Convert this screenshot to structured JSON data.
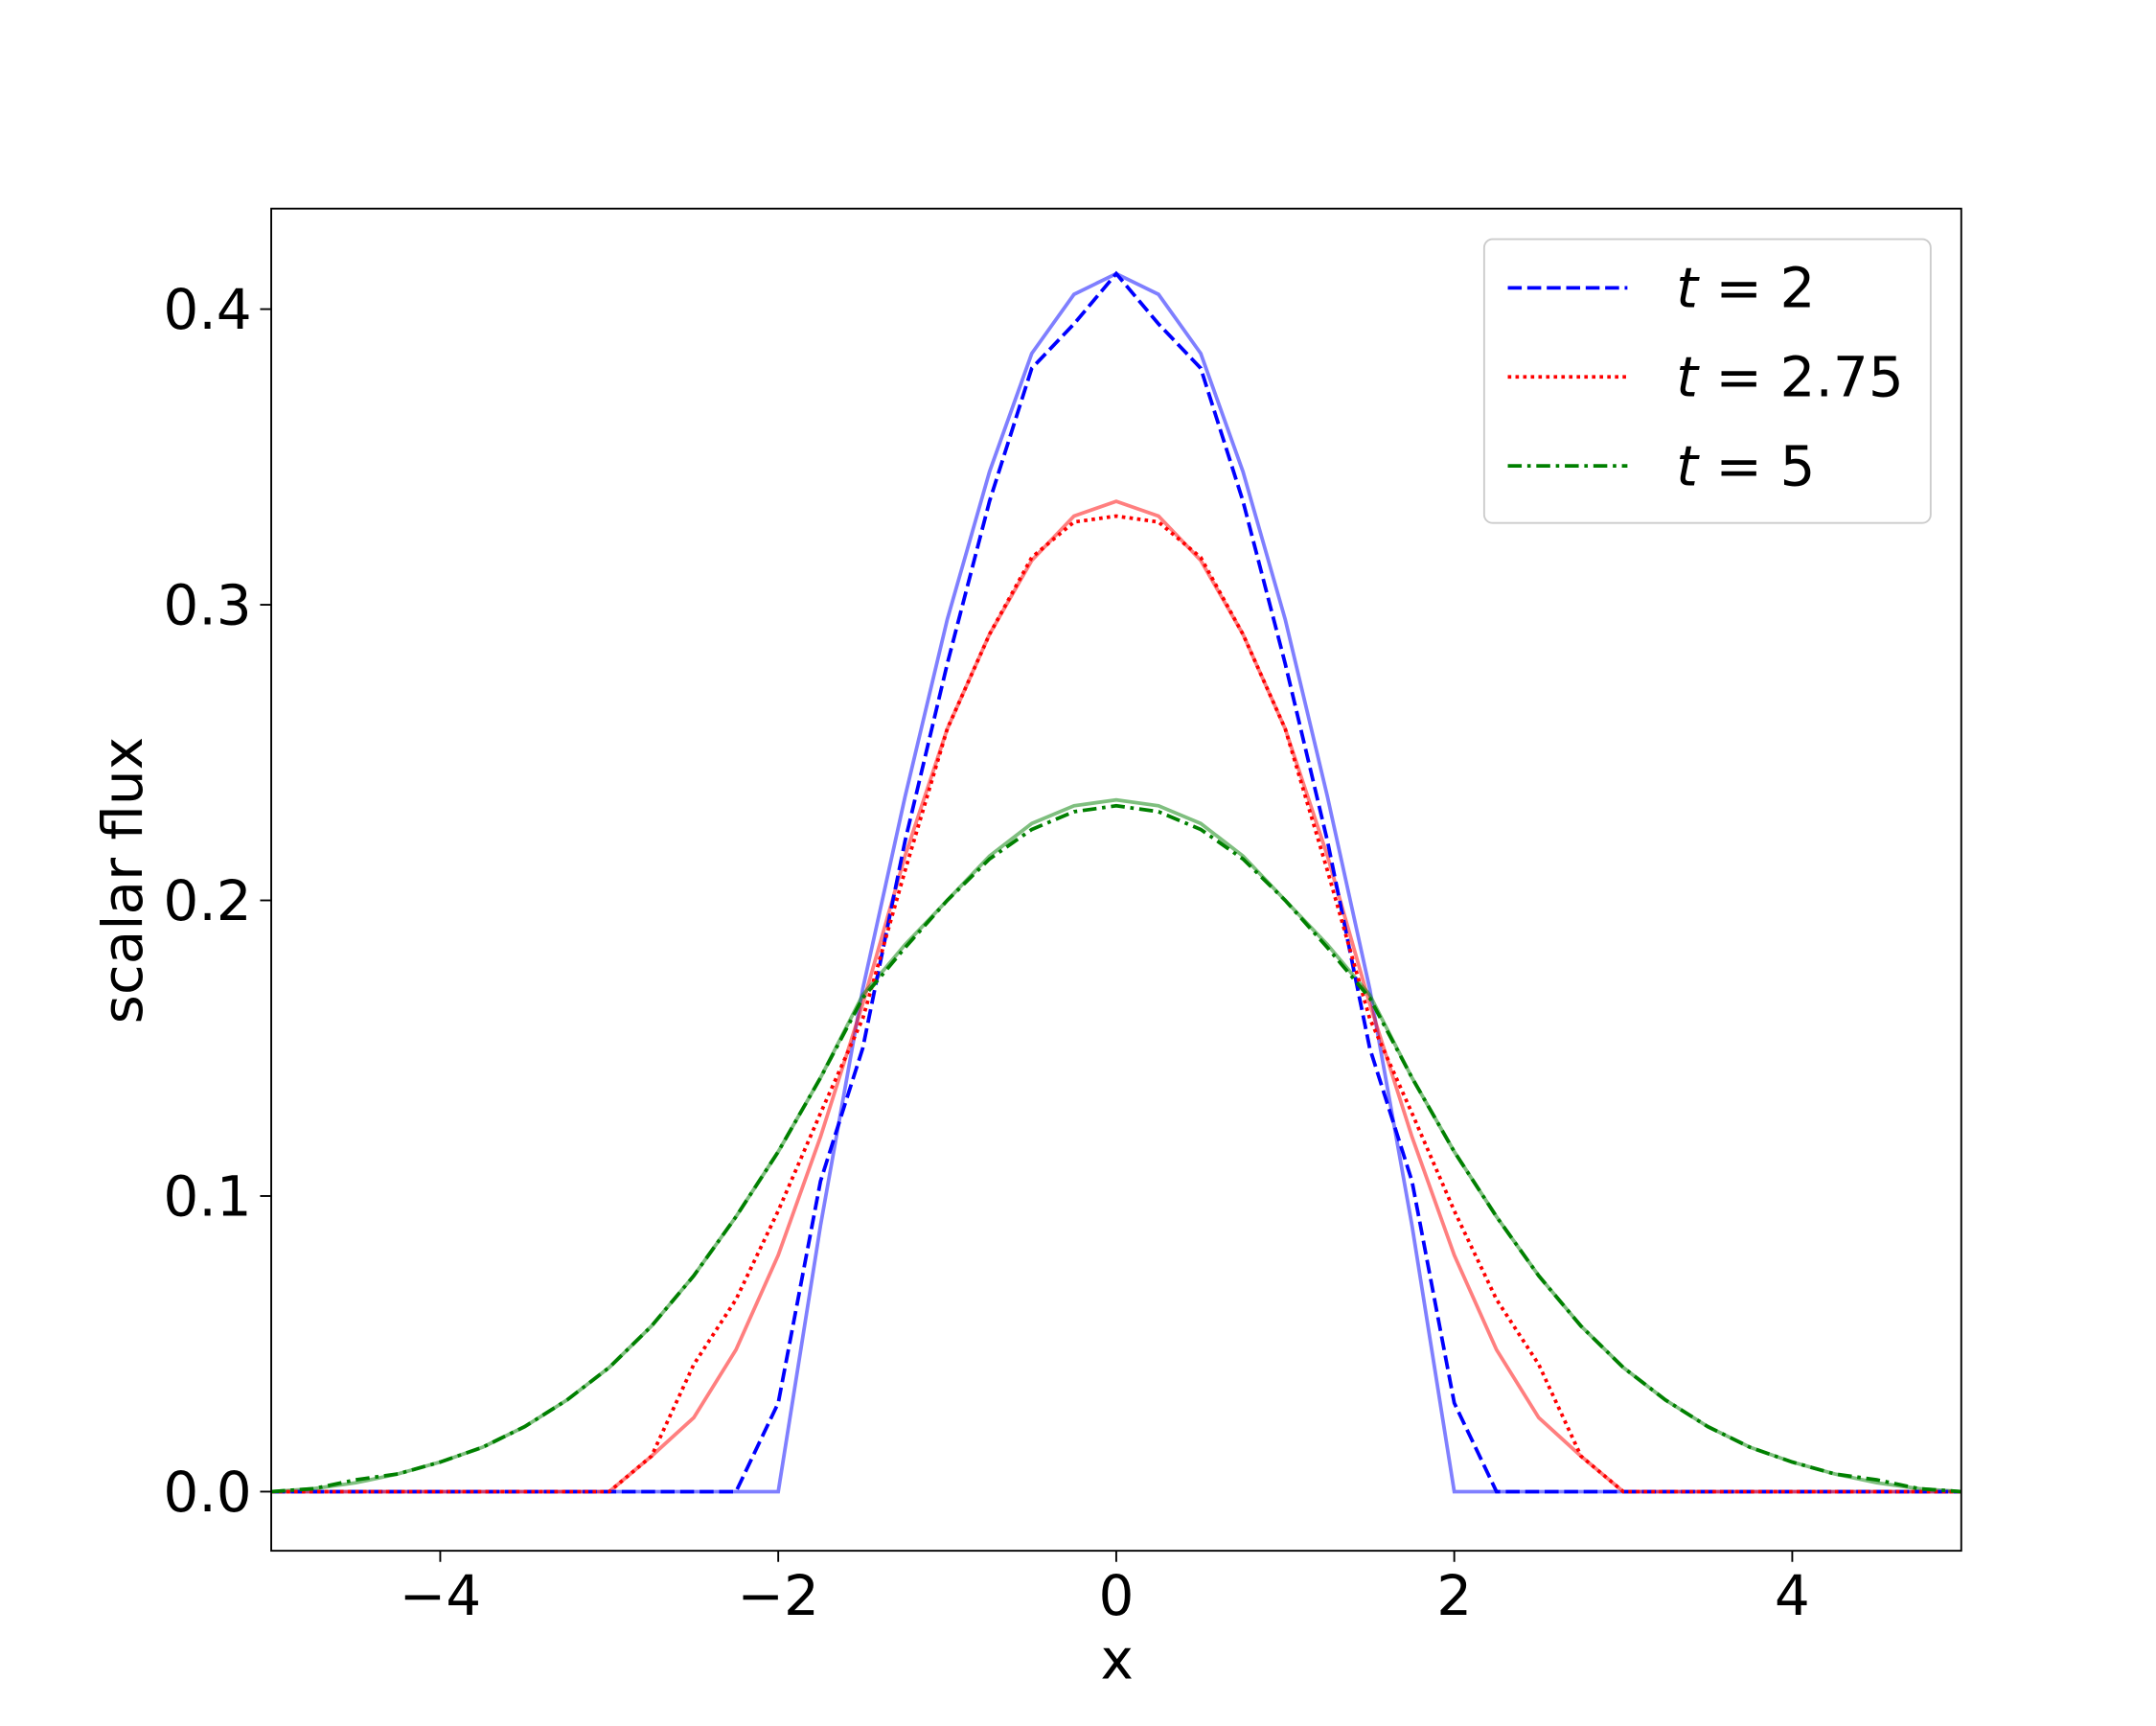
{
  "chart_data": {
    "type": "line",
    "xlabel": "x",
    "ylabel": "scalar flux",
    "x": [
      -5,
      -4.75,
      -4.5,
      -4.25,
      -4,
      -3.75,
      -3.5,
      -3.25,
      -3,
      -2.75,
      -2.5,
      -2.25,
      -2,
      -1.75,
      -1.5,
      -1.25,
      -1,
      -0.75,
      -0.5,
      -0.25,
      0,
      0.25,
      0.5,
      0.75,
      1,
      1.25,
      1.5,
      1.75,
      2,
      2.25,
      2.5,
      2.75,
      3,
      3.25,
      3.5,
      3.75,
      4,
      4.25,
      4.5,
      4.75,
      5
    ],
    "series": [
      {
        "color": "#0000ff",
        "linestyle": "solid",
        "alpha": 0.5,
        "values": [
          0,
          0,
          0,
          0,
          0,
          0,
          0,
          0,
          0,
          0,
          0,
          0,
          0,
          0.09,
          0.17,
          0.235,
          0.295,
          0.345,
          0.385,
          0.405,
          0.412,
          0.405,
          0.385,
          0.345,
          0.295,
          0.235,
          0.17,
          0.09,
          0,
          0,
          0,
          0,
          0,
          0,
          0,
          0,
          0,
          0,
          0,
          0,
          0
        ]
      },
      {
        "color": "#ff0000",
        "linestyle": "solid",
        "alpha": 0.5,
        "values": [
          0,
          0,
          0,
          0,
          0,
          0,
          0,
          0,
          0,
          0.012,
          0.025,
          0.048,
          0.08,
          0.12,
          0.165,
          0.215,
          0.258,
          0.29,
          0.315,
          0.33,
          0.335,
          0.33,
          0.315,
          0.29,
          0.258,
          0.215,
          0.165,
          0.12,
          0.08,
          0.048,
          0.025,
          0.012,
          0,
          0,
          0,
          0,
          0,
          0,
          0,
          0,
          0
        ]
      },
      {
        "color": "#008000",
        "linestyle": "solid",
        "alpha": 0.5,
        "values": [
          0,
          0.001,
          0.003,
          0.006,
          0.01,
          0.015,
          0.022,
          0.031,
          0.042,
          0.056,
          0.073,
          0.093,
          0.115,
          0.14,
          0.168,
          0.185,
          0.2,
          0.215,
          0.226,
          0.232,
          0.234,
          0.232,
          0.226,
          0.215,
          0.2,
          0.185,
          0.168,
          0.14,
          0.115,
          0.093,
          0.073,
          0.056,
          0.042,
          0.031,
          0.022,
          0.015,
          0.01,
          0.006,
          0.003,
          0.001,
          0
        ]
      },
      {
        "name": "t = 2",
        "color": "#0000ff",
        "linestyle": "dashed",
        "alpha": 1,
        "values": [
          0,
          0,
          0,
          0,
          0,
          0,
          0,
          0,
          0,
          0,
          0,
          0,
          0.03,
          0.105,
          0.15,
          0.22,
          0.28,
          0.335,
          0.38,
          0.395,
          0.412,
          0.395,
          0.38,
          0.335,
          0.28,
          0.22,
          0.15,
          0.105,
          0.03,
          0,
          0,
          0,
          0,
          0,
          0,
          0,
          0,
          0,
          0,
          0,
          0
        ]
      },
      {
        "name": "t = 2.75",
        "color": "#ff0000",
        "linestyle": "dotted",
        "alpha": 1,
        "values": [
          0,
          0,
          0,
          0,
          0,
          0,
          0,
          0,
          0,
          0.012,
          0.043,
          0.065,
          0.095,
          0.128,
          0.16,
          0.21,
          0.258,
          0.29,
          0.316,
          0.328,
          0.33,
          0.328,
          0.316,
          0.29,
          0.258,
          0.21,
          0.16,
          0.128,
          0.095,
          0.065,
          0.043,
          0.012,
          0,
          0,
          0,
          0,
          0,
          0,
          0,
          0,
          0
        ]
      },
      {
        "name": "t = 5",
        "color": "#008000",
        "linestyle": "dashdot",
        "alpha": 1,
        "values": [
          0,
          0.001,
          0.004,
          0.006,
          0.01,
          0.015,
          0.022,
          0.031,
          0.042,
          0.056,
          0.073,
          0.093,
          0.115,
          0.14,
          0.167,
          0.184,
          0.2,
          0.214,
          0.224,
          0.23,
          0.232,
          0.23,
          0.224,
          0.214,
          0.2,
          0.184,
          0.167,
          0.14,
          0.115,
          0.093,
          0.073,
          0.056,
          0.042,
          0.031,
          0.022,
          0.015,
          0.01,
          0.006,
          0.004,
          0.001,
          0
        ]
      }
    ],
    "xlim": [
      -5,
      5
    ],
    "ylim": [
      -0.02,
      0.434
    ],
    "xticks": [
      {
        "value": -4,
        "label": "−4"
      },
      {
        "value": -2,
        "label": "−2"
      },
      0,
      2,
      4
    ],
    "yticks": [
      {
        "value": 0,
        "label": "0.0"
      },
      0.1,
      0.2,
      0.3,
      0.4
    ],
    "grid": false,
    "legend": "upper right"
  }
}
